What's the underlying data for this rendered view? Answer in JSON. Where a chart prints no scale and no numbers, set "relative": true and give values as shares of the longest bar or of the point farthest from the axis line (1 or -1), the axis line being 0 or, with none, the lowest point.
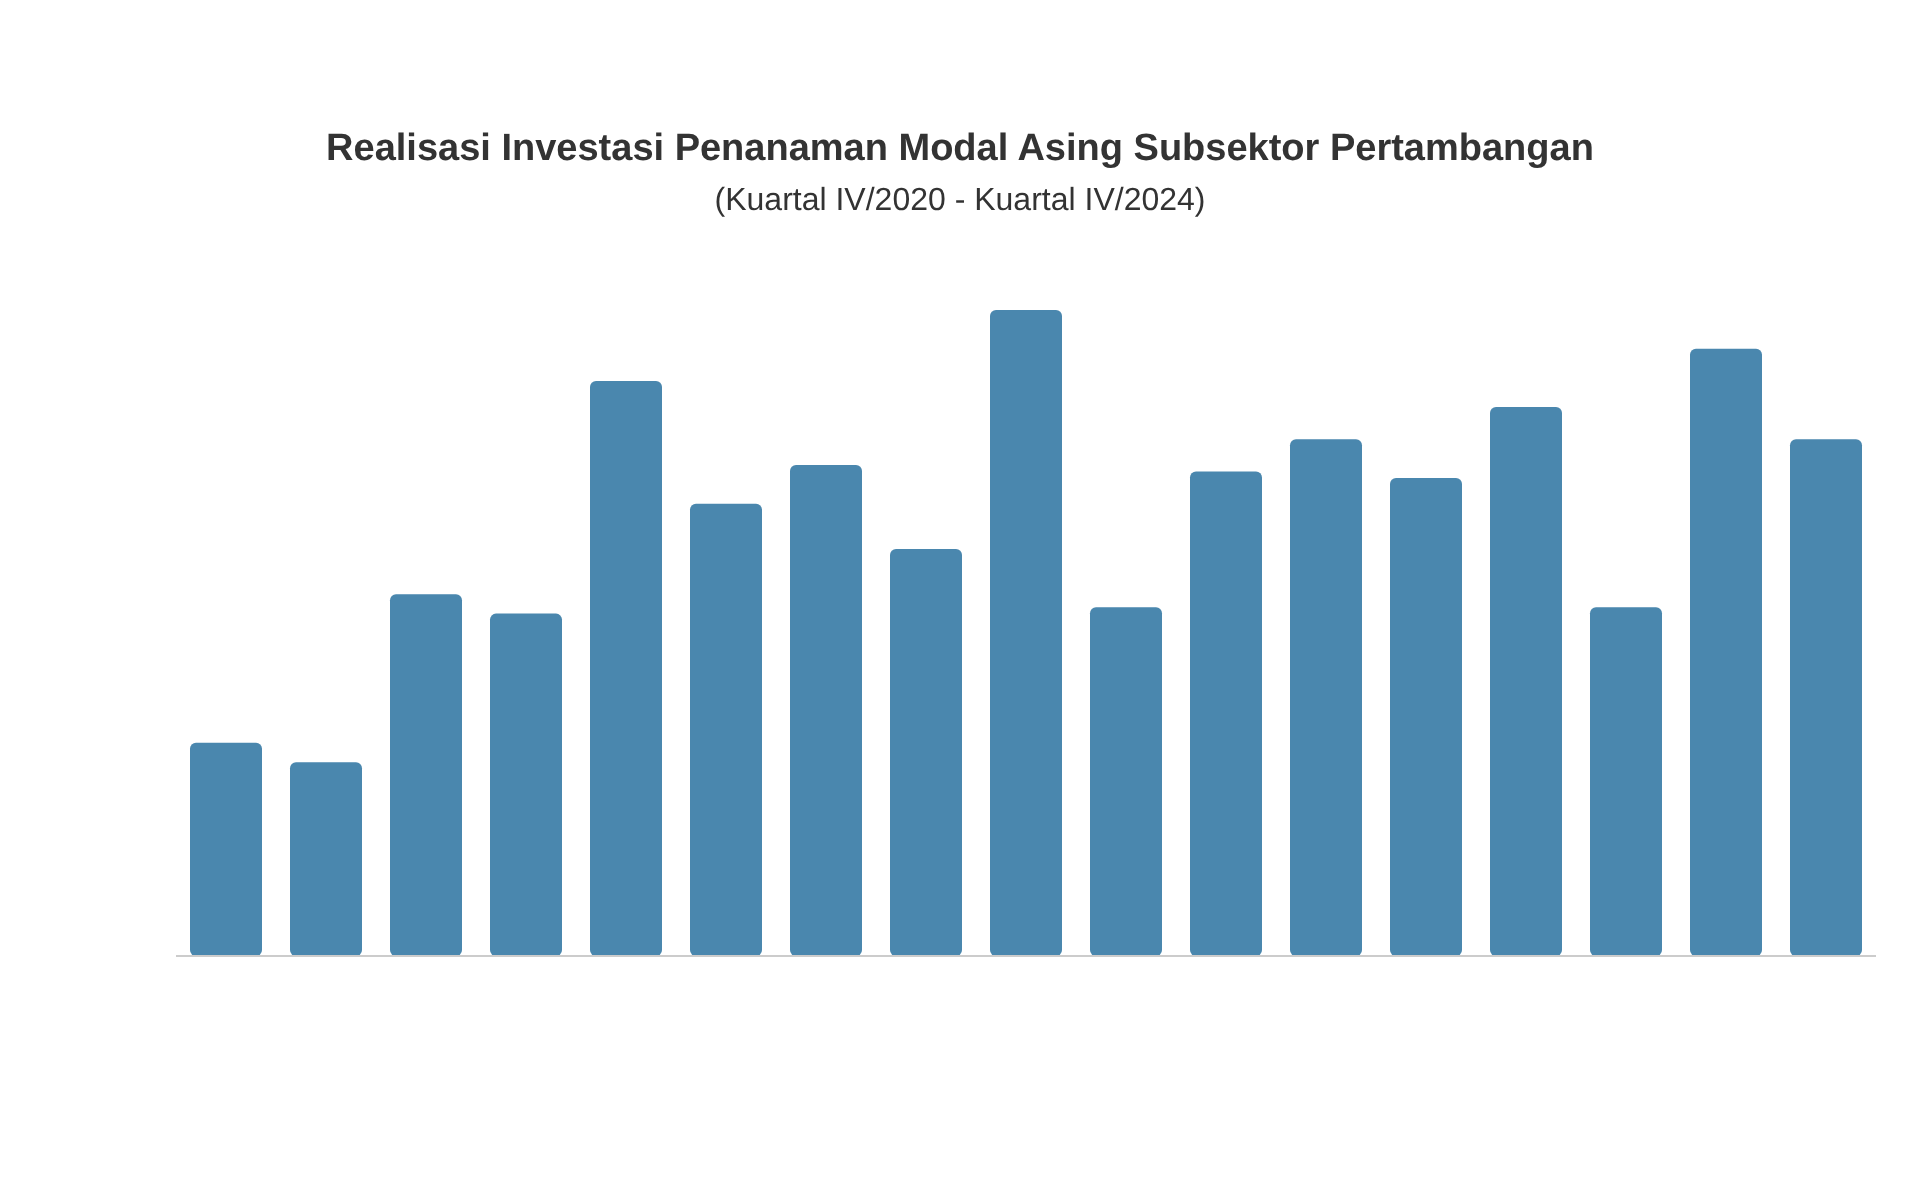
{
  "chart_data": {
    "type": "bar",
    "title": "Realisasi Investasi Penanaman Modal Asing Subsektor Pertambangan",
    "subtitle": "(Kuartal IV/2020 - Kuartal IV/2024)",
    "categories": [
      null,
      null,
      null,
      null,
      null,
      null,
      null,
      null,
      null,
      null,
      null,
      null,
      null,
      null,
      null,
      null,
      null
    ],
    "values": [
      0.33,
      0.3,
      0.56,
      0.53,
      0.89,
      0.7,
      0.76,
      0.63,
      1,
      0.54,
      0.75,
      0.8,
      0.74,
      0.85,
      0.54,
      0.94,
      0.8
    ],
    "color": "#4a87ae",
    "relative": true
  }
}
